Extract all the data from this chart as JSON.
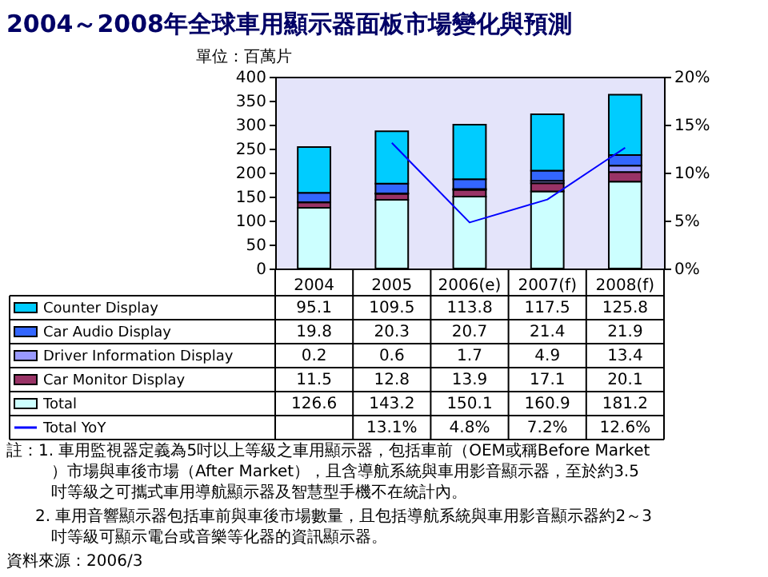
{
  "chart_data": {
    "type": "bar",
    "title": "2004～2008年全球車用顯示器面板市場變化與預測",
    "ylabel": "單位：百萬片",
    "categories": [
      "2004",
      "2005",
      "2006(e)",
      "2007(f)",
      "2008(f)"
    ],
    "stacked": true,
    "ylim": [
      0,
      400
    ],
    "yticks": [
      0,
      50,
      100,
      150,
      200,
      250,
      300,
      350,
      400
    ],
    "y2lim": [
      0,
      20
    ],
    "y2ticks": [
      {
        "value": 0,
        "label": "0%"
      },
      {
        "value": 5,
        "label": "5%"
      },
      {
        "value": 10,
        "label": "10%"
      },
      {
        "value": 15,
        "label": "15%"
      },
      {
        "value": 20,
        "label": "20%"
      }
    ],
    "grid": false,
    "legend": "bottom left",
    "data_labels": true,
    "series": [
      {
        "name": "Total",
        "color": "#ccffff",
        "values": [
          126.6,
          143.2,
          150.1,
          160.9,
          181.2
        ]
      },
      {
        "name": "Car Monitor Display",
        "color": "#993366",
        "values": [
          11.5,
          12.8,
          13.9,
          17.1,
          20.1
        ]
      },
      {
        "name": "Driver Information Display",
        "color": "#9999ff",
        "values": [
          0.2,
          0.6,
          1.7,
          4.9,
          13.4
        ]
      },
      {
        "name": "Car Audio Display",
        "color": "#3366ff",
        "values": [
          19.8,
          20.3,
          20.7,
          21.4,
          21.9
        ]
      },
      {
        "name": "Counter Display",
        "color": "#00ccff",
        "values": [
          95.1,
          109.5,
          113.8,
          117.5,
          125.8
        ]
      },
      {
        "name": "Total YoY",
        "type": "line",
        "axis": "y2",
        "color": "#0000ff",
        "values": [
          null,
          13.1,
          4.8,
          7.2,
          12.6
        ],
        "value_labels": [
          null,
          "13.1%",
          "4.8%",
          "7.2%",
          "12.6%"
        ]
      }
    ],
    "annotations": [
      "註：1. 車用監視器定義為5吋以上等級之車用顯示器，包括車前（OEM或稱Before Market）市場與車後市場（After Market），且含導航系統與車用影音顯示器，至於約3.5吋等級之可攜式車用導航顯示器及智慧型手機不在統計內。",
      "2. 車用音響顯示器包括車前與車後市場數量，且包括導航系統與車用影音顯示器約2～3吋等級可顯示電台或音樂等化器的資訊顯示器。",
      "資料來源：2006/3"
    ]
  }
}
